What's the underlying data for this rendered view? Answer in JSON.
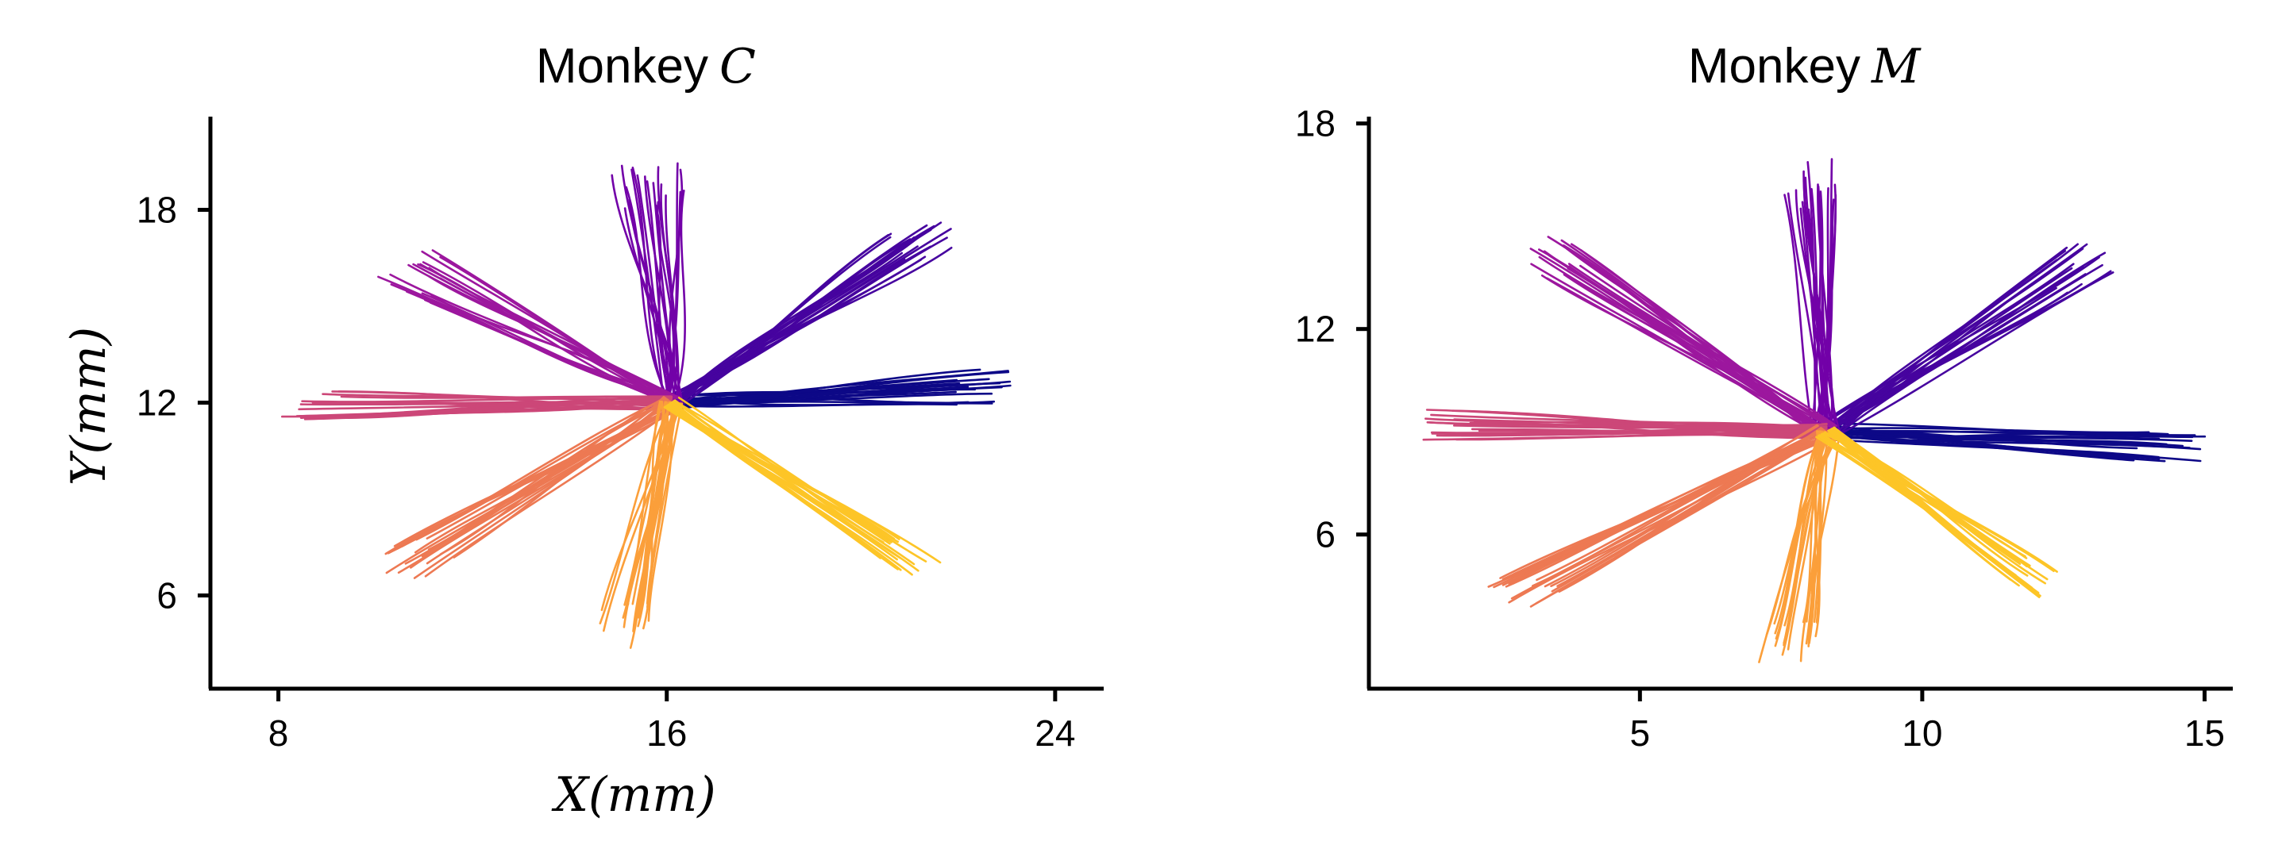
{
  "figure": {
    "panels": [
      {
        "title_prefix": "Monkey",
        "title_var": "C"
      },
      {
        "title_prefix": "Monkey",
        "title_var": "M"
      }
    ]
  },
  "chart_data": [
    {
      "type": "line",
      "title": "Monkey C",
      "xlabel": "X(mm)",
      "ylabel": "Y(mm)",
      "xlim": [
        6.6,
        25.0
      ],
      "ylim": [
        3.1,
        20.9
      ],
      "xticks": [
        8,
        16,
        24
      ],
      "yticks": [
        6,
        12,
        18
      ],
      "center": [
        16.1,
        12.0
      ],
      "trials_per_target": 20,
      "grid": false,
      "legend": "none",
      "series": [
        {
          "color": "#0d0887",
          "end": [
            22.7,
            12.5
          ],
          "spread": 0.55
        },
        {
          "color": "#46039f",
          "end": [
            21.5,
            17.2
          ],
          "spread": 0.7
        },
        {
          "color": "#7201a8",
          "end": [
            15.6,
            19.0
          ],
          "spread": 0.75
        },
        {
          "color": "#9c179e",
          "end": [
            10.8,
            16.2
          ],
          "spread": 0.75
        },
        {
          "color": "#cc4778",
          "end": [
            8.4,
            11.9
          ],
          "spread": 0.45
        },
        {
          "color": "#ed7953",
          "end": [
            10.5,
            6.9
          ],
          "spread": 0.6
        },
        {
          "color": "#fb9f3a",
          "end": [
            15.1,
            4.8
          ],
          "spread": 0.55
        },
        {
          "color": "#fdc527",
          "end": [
            21.1,
            7.0
          ],
          "spread": 0.45
        }
      ]
    },
    {
      "type": "line",
      "title": "Monkey M",
      "xlabel": "",
      "ylabel": "",
      "xlim": [
        0.2,
        15.5
      ],
      "ylim": [
        1.5,
        18.2
      ],
      "xticks": [
        5,
        10,
        15
      ],
      "yticks": [
        6,
        12,
        18
      ],
      "center": [
        8.3,
        9.0
      ],
      "trials_per_target": 20,
      "grid": false,
      "legend": "none",
      "series": [
        {
          "color": "#0d0887",
          "end": [
            14.6,
            8.5
          ],
          "spread": 0.45
        },
        {
          "color": "#46039f",
          "end": [
            12.9,
            14.0
          ],
          "spread": 0.6
        },
        {
          "color": "#7201a8",
          "end": [
            8.0,
            16.5
          ],
          "spread": 0.5
        },
        {
          "color": "#9c179e",
          "end": [
            3.3,
            14.2
          ],
          "spread": 0.55
        },
        {
          "color": "#cc4778",
          "end": [
            1.5,
            9.2
          ],
          "spread": 0.45
        },
        {
          "color": "#ed7953",
          "end": [
            2.9,
            4.4
          ],
          "spread": 0.5
        },
        {
          "color": "#fb9f3a",
          "end": [
            7.6,
            2.6
          ],
          "spread": 0.5
        },
        {
          "color": "#fdc527",
          "end": [
            12.1,
            4.6
          ],
          "spread": 0.45
        }
      ]
    }
  ]
}
